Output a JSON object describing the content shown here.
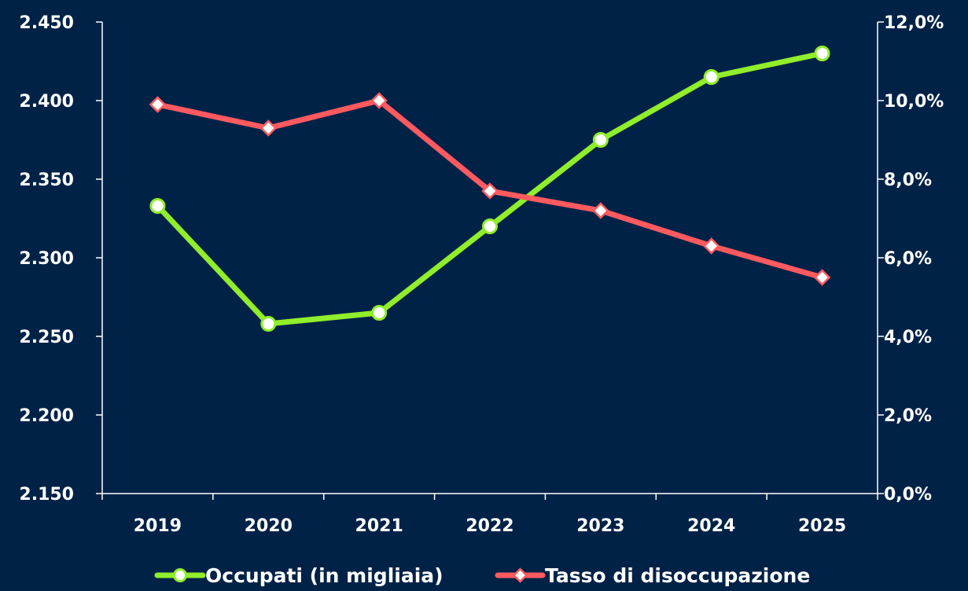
{
  "chart_data": {
    "type": "line",
    "categories": [
      "2019",
      "2020",
      "2021",
      "2022",
      "2023",
      "2024",
      "2025"
    ],
    "series": [
      {
        "name": "Occupati (in migliaia)",
        "axis": "left",
        "color": "#90ee2a",
        "marker": "circle",
        "values": [
          2333,
          2258,
          2265,
          2320,
          2375,
          2415,
          2430
        ]
      },
      {
        "name": "Tasso di disoccupazione",
        "axis": "right",
        "color": "#ff5a5f",
        "marker": "diamond",
        "values": [
          9.9,
          9.3,
          10.0,
          7.7,
          7.2,
          6.3,
          5.5
        ]
      }
    ],
    "y_left": {
      "ylim": [
        2150,
        2450
      ],
      "ticks": [
        2150,
        2200,
        2250,
        2300,
        2350,
        2400,
        2450
      ],
      "tick_labels": [
        "2.150",
        "2.200",
        "2.250",
        "2.300",
        "2.350",
        "2.400",
        "2.450"
      ]
    },
    "y_right": {
      "ylim": [
        0,
        12
      ],
      "ticks": [
        0,
        2,
        4,
        6,
        8,
        10,
        12
      ],
      "tick_labels": [
        "0,0%",
        "2,0%",
        "4,0%",
        "6,0%",
        "8,0%",
        "10,0%",
        "12,0%"
      ]
    },
    "grid": false,
    "legend": "bottom",
    "colors": {
      "background": "#012247",
      "axis": "#ffffff",
      "text": "#ffffff"
    }
  }
}
